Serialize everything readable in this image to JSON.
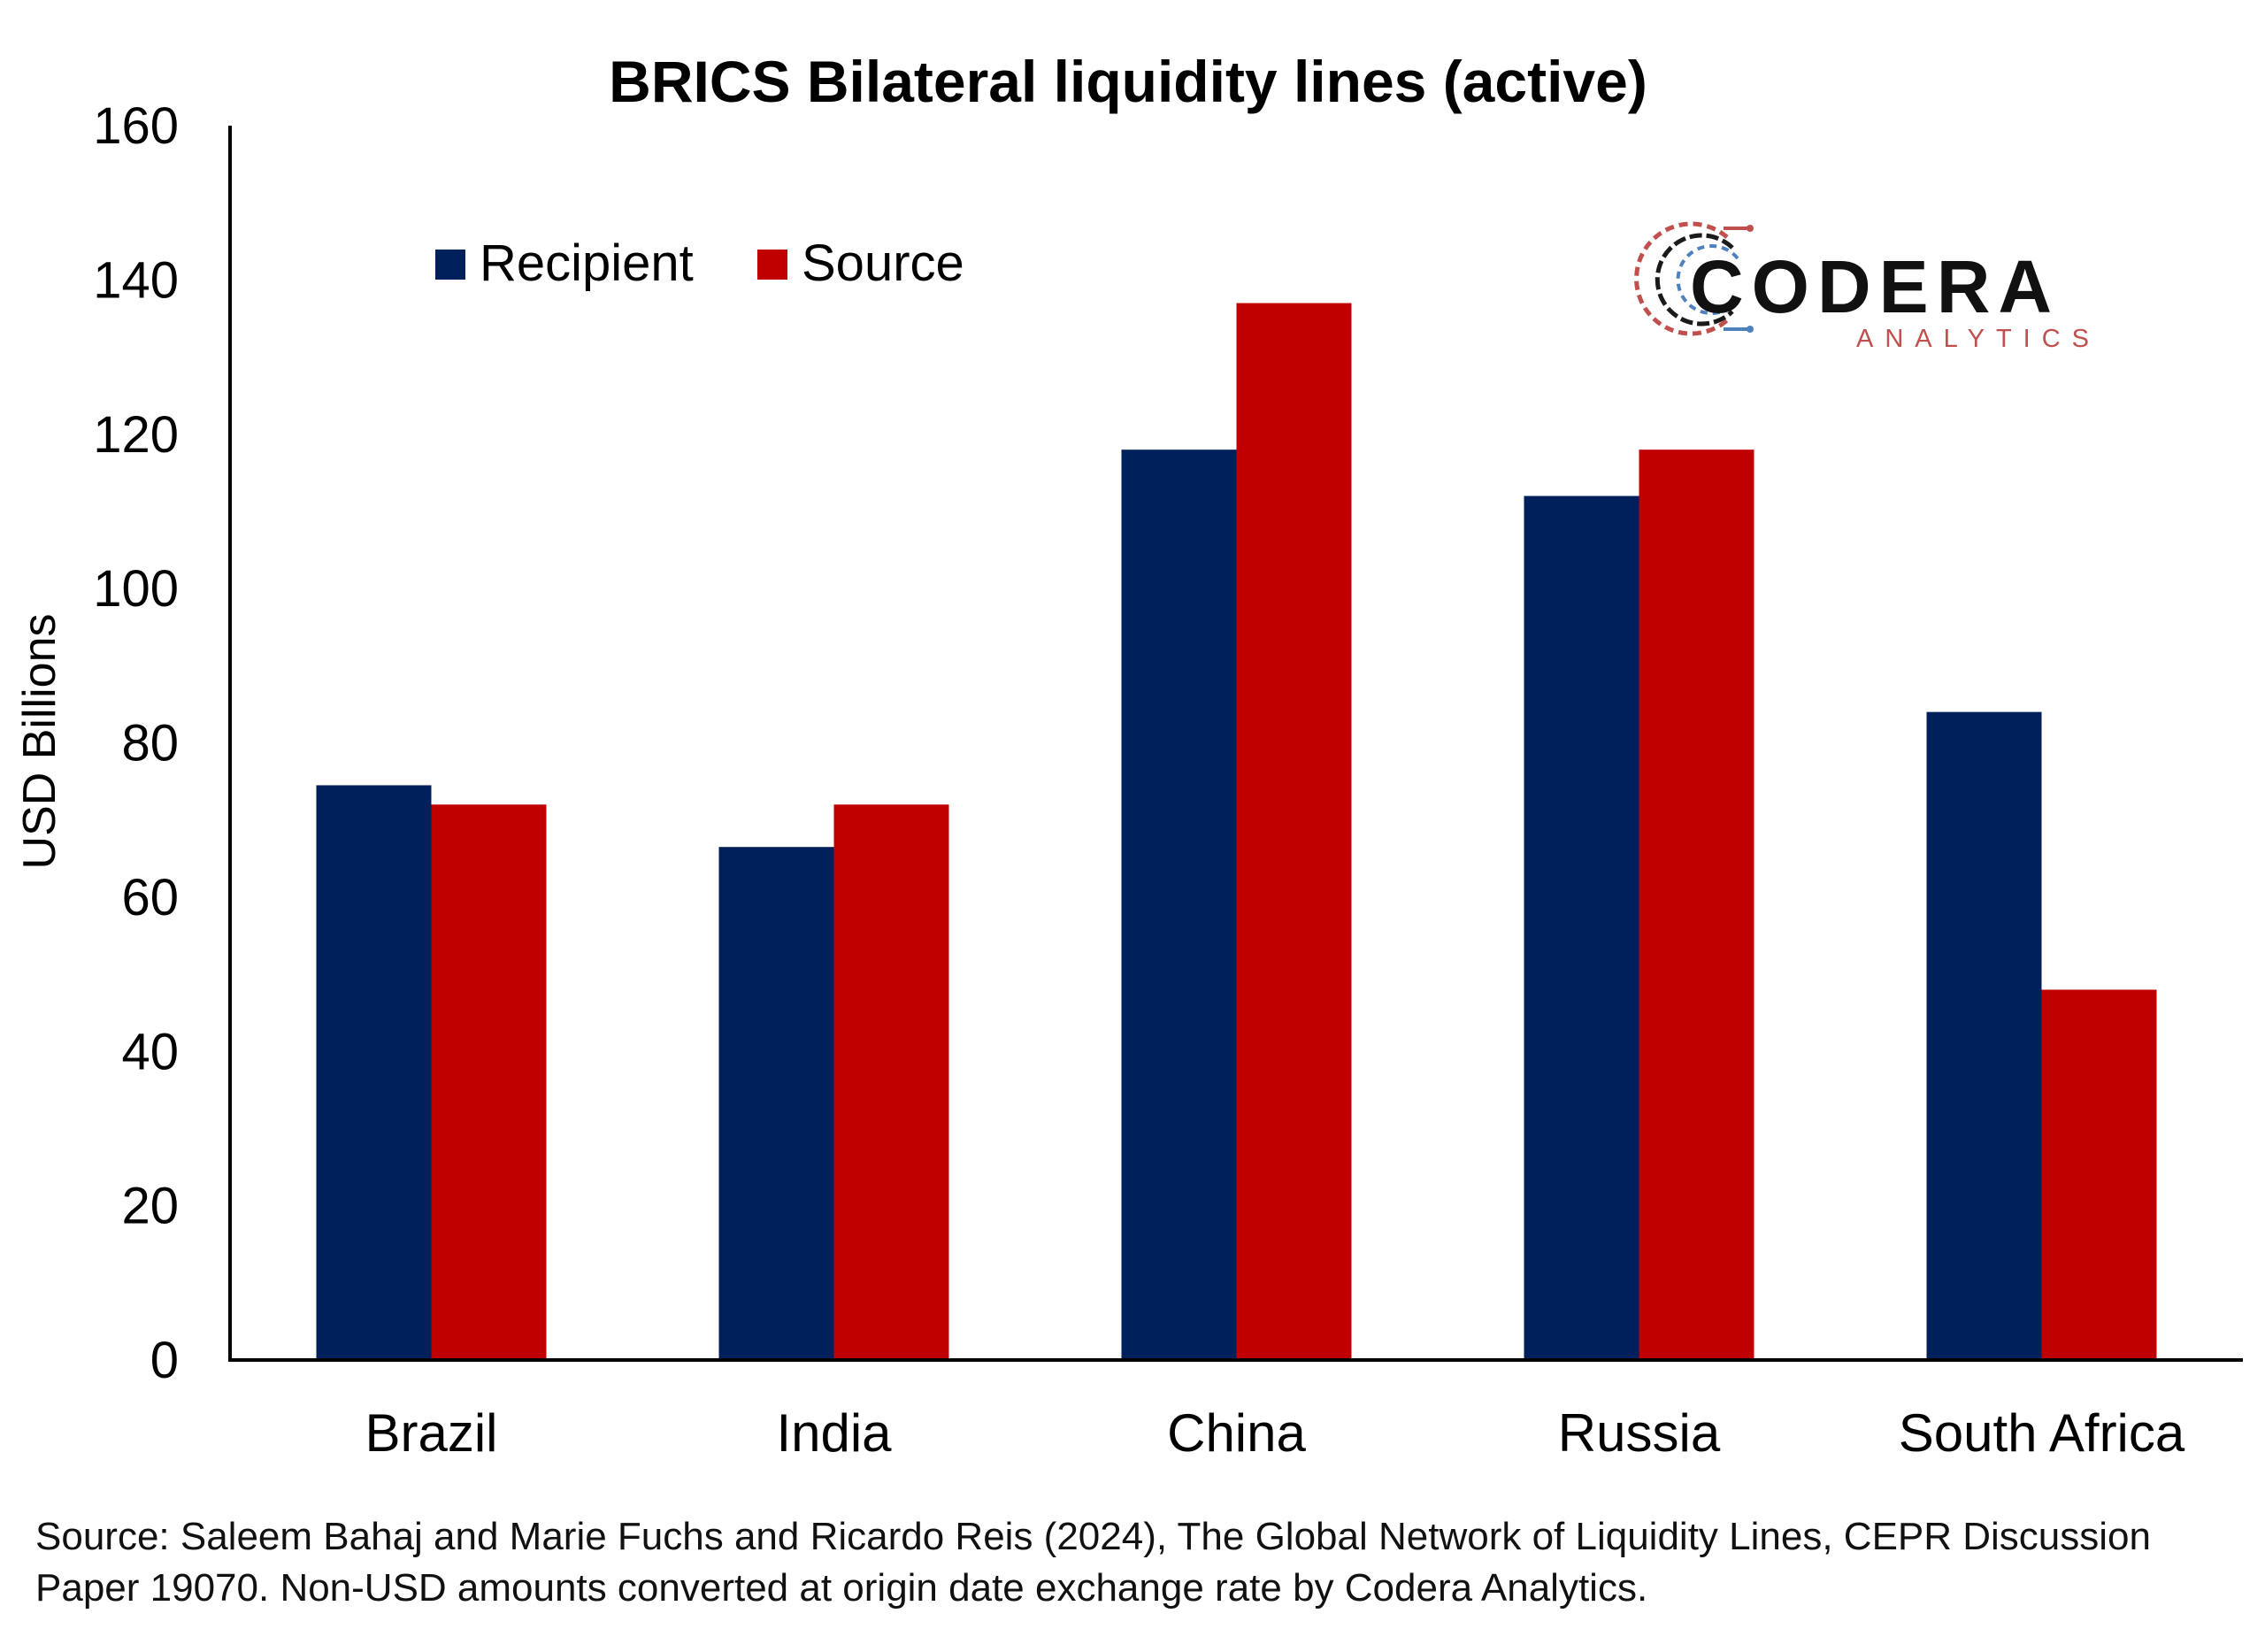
{
  "chart_data": {
    "type": "bar",
    "title": "BRICS Bilateral liquidity lines (active)",
    "xlabel": "",
    "ylabel": "USD Billions",
    "ylim": [
      0,
      160
    ],
    "yticks": [
      0,
      20,
      40,
      60,
      80,
      100,
      120,
      140,
      160
    ],
    "categories": [
      "Brazil",
      "India",
      "China",
      "Russia",
      "South Africa"
    ],
    "series": [
      {
        "name": "Recipient",
        "color": "#00205b",
        "values": [
          74.5,
          66.5,
          118,
          112,
          84
        ]
      },
      {
        "name": "Source",
        "color": "#c00000",
        "values": [
          72,
          72,
          137,
          118,
          48
        ]
      }
    ],
    "legend_position": "top-left",
    "grid": false
  },
  "logo": {
    "name": "CODERA",
    "tagline": "ANALYTICS",
    "tagline_color": "#c0504d",
    "icon": "circular-circuit-logo-icon"
  },
  "source_note": "Source: Saleem Bahaj and Marie Fuchs and Ricardo Reis (2024), The Global Network of Liquidity Lines, CEPR Discussion Paper 19070. Non-USD amounts converted at origin date exchange rate by Codera Analytics."
}
